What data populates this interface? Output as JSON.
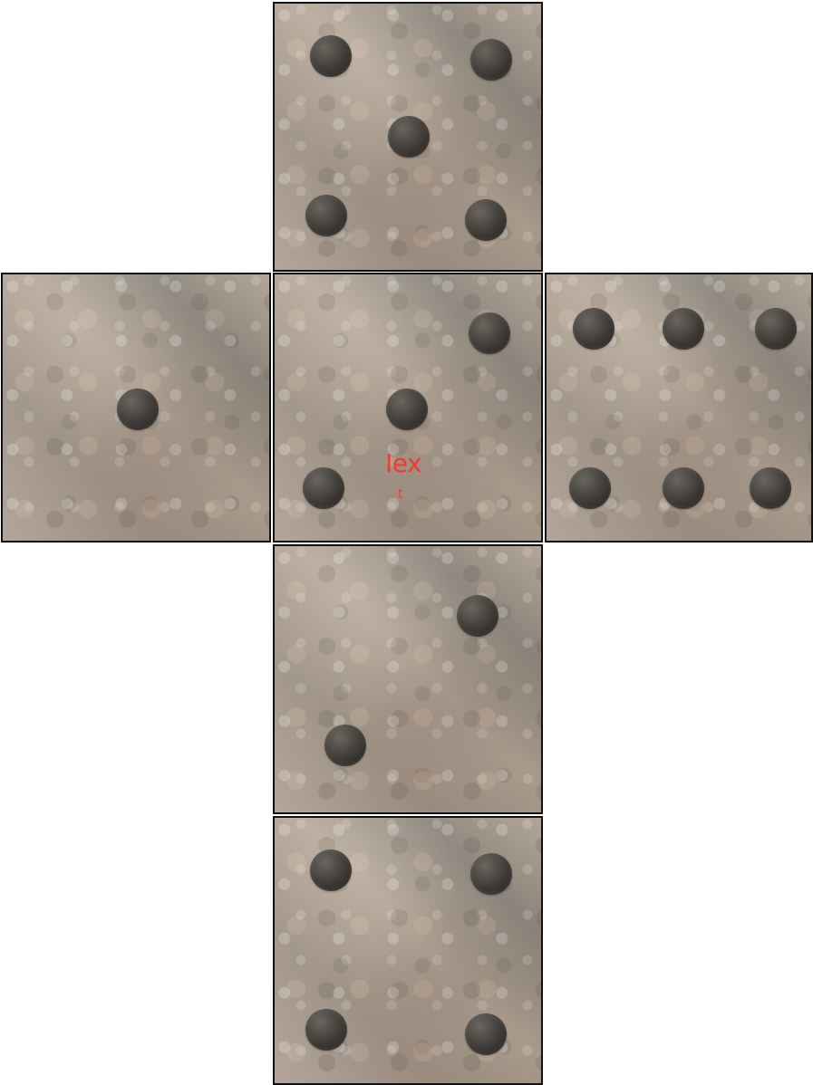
{
  "colors": {
    "accent": "#ef3b2c",
    "border": "#111111",
    "pip": "#2f2c29"
  },
  "faces": [
    {
      "name": "top-face",
      "pip_count": 5
    },
    {
      "name": "left-face",
      "pip_count": 1
    },
    {
      "name": "center-face",
      "pip_count": 3
    },
    {
      "name": "right-face",
      "pip_count": 6
    },
    {
      "name": "lower-face",
      "pip_count": 2
    },
    {
      "name": "bottom-face",
      "pip_count": 4
    }
  ],
  "labels": {
    "top": "Iex",
    "bottom": "t"
  }
}
